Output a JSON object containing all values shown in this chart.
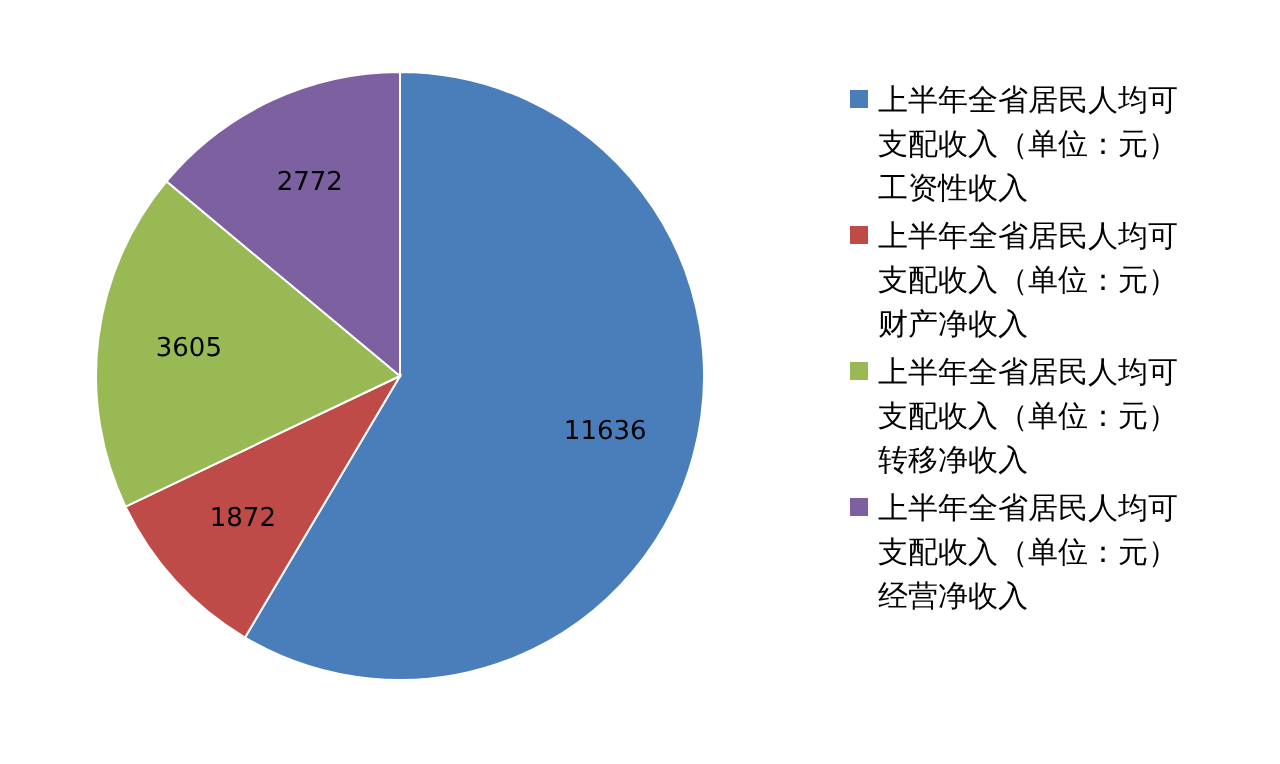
{
  "chart_data": {
    "type": "pie",
    "categories": [
      "上半年全省居民人均可支配收入（单位：元）工资性收入",
      "上半年全省居民人均可支配收入（单位：元）财产净收入",
      "上半年全省居民人均可支配收入（单位：元）转移净收入",
      "上半年全省居民人均可支配收入（单位：元）经营净收入"
    ],
    "values": [
      11636,
      1872,
      3605,
      2772
    ],
    "colors": [
      "#4a7ebb",
      "#be4b48",
      "#98b954",
      "#7d60a0"
    ],
    "data_labels": true,
    "legend": "right"
  }
}
